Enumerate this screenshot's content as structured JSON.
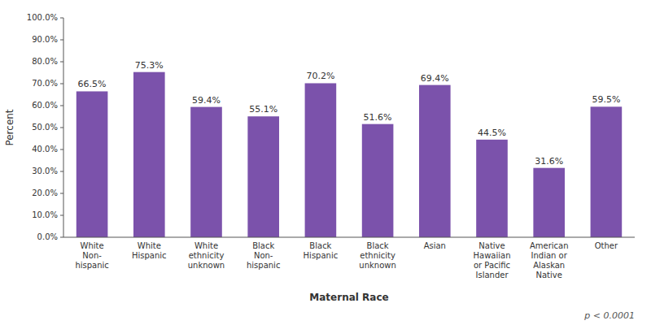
{
  "chart_data": {
    "type": "bar",
    "categories": [
      "White\nNon-\nhispanic",
      "White\nHispanic",
      "White\nethnicity\nunknown",
      "Black\nNon-\nhispanic",
      "Black\nHispanic",
      "Black\nethnicity\nunknown",
      "Asian",
      "Native\nHawaiian\nor Pacific\nIslander",
      "American\nIndian or\nAlaskan\nNative",
      "Other"
    ],
    "values": [
      66.5,
      75.3,
      59.4,
      55.1,
      70.2,
      51.6,
      69.4,
      44.5,
      31.6,
      59.5
    ],
    "value_labels": [
      "66.5%",
      "75.3%",
      "59.4%",
      "55.1%",
      "70.2%",
      "51.6%",
      "69.4%",
      "44.5%",
      "31.6%",
      "59.5%"
    ],
    "color": "#7B52AB",
    "xlabel": "Maternal Race",
    "ylabel": "Percent",
    "annotations": [
      "p < 0.0001"
    ],
    "ylim": [
      0,
      100
    ],
    "yticks": [
      {
        "value": 0,
        "label": "0.0%"
      },
      {
        "value": 10,
        "label": "10.0%"
      },
      {
        "value": 20,
        "label": "20.0%"
      },
      {
        "value": 30,
        "label": "30.0%"
      },
      {
        "value": 40,
        "label": "40.0%"
      },
      {
        "value": 50,
        "label": "50.0%"
      },
      {
        "value": 60,
        "label": "60.0%"
      },
      {
        "value": 70,
        "label": "70.0%"
      },
      {
        "value": 80,
        "label": "80.0%"
      },
      {
        "value": 90,
        "label": "90.0%"
      },
      {
        "value": 100,
        "label": "100.0%"
      }
    ],
    "grid": false
  }
}
